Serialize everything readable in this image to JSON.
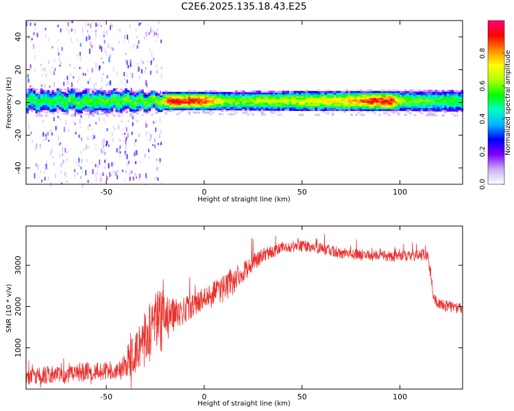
{
  "title": "C2E6.2025.135.18.43.E25",
  "chart_data": [
    {
      "type": "heatmap",
      "xlabel": "Height of straight line (km)",
      "ylabel": "Frequency (Hz)",
      "xlim": [
        -91,
        132
      ],
      "ylim": [
        -50,
        50
      ],
      "xticks": [
        -50,
        0,
        50,
        100
      ],
      "yticks": [
        -40,
        -20,
        0,
        20,
        40
      ],
      "colorbar": {
        "label": "Normalized spectral amplitude",
        "range": [
          0,
          1
        ],
        "ticks": [
          "0.0",
          "0.2",
          "0.4",
          "0.6",
          "0.8"
        ],
        "tick_values": [
          0,
          0.2,
          0.4,
          0.6,
          0.8
        ],
        "colors": [
          "#ffffff",
          "#c8b0f0",
          "#7f00ff",
          "#0000ff",
          "#00b4ff",
          "#00ffc8",
          "#00ff00",
          "#b4ff00",
          "#ffff00",
          "#ff8c00",
          "#ff0000",
          "#ff0078"
        ]
      },
      "band": {
        "center_hz": 1,
        "halfwidth_hz": [
          [
            -91,
            5
          ],
          [
            -40,
            5
          ],
          [
            -22,
            4
          ],
          [
            0,
            4
          ],
          [
            50,
            4.5
          ],
          [
            100,
            4.5
          ],
          [
            132,
            5
          ]
        ],
        "peak_amplitude": [
          [
            -91,
            0.5
          ],
          [
            -40,
            0.55
          ],
          [
            -22,
            0.6
          ],
          [
            -18,
            0.9
          ],
          [
            0,
            0.85
          ],
          [
            10,
            0.6
          ],
          [
            40,
            0.65
          ],
          [
            70,
            0.72
          ],
          [
            85,
            0.85
          ],
          [
            95,
            0.9
          ],
          [
            100,
            0.6
          ],
          [
            132,
            0.5
          ]
        ],
        "scatter_noise_region_km": [
          -91,
          -22
        ]
      }
    },
    {
      "type": "line",
      "xlabel": "Height of straight line (km)",
      "ylabel": "SNR (10 * v/v)",
      "xlim": [
        -91,
        132
      ],
      "ylim": [
        0,
        3950
      ],
      "xticks": [
        -50,
        0,
        50,
        100
      ],
      "yticks": [
        1000,
        2000,
        3000
      ],
      "series": [
        {
          "color": "#e8302c",
          "envelope": [
            [
              -91,
              280,
              350
            ],
            [
              -80,
              350,
              400
            ],
            [
              -70,
              330,
              380
            ],
            [
              -60,
              420,
              420
            ],
            [
              -45,
              450,
              400
            ],
            [
              -40,
              600,
              700
            ],
            [
              -35,
              900,
              900
            ],
            [
              -30,
              1300,
              1200
            ],
            [
              -25,
              1600,
              1400
            ],
            [
              -21,
              1700,
              1500
            ],
            [
              -18,
              1700,
              900
            ],
            [
              -14,
              1850,
              700
            ],
            [
              -10,
              1900,
              600
            ],
            [
              -5,
              2050,
              500
            ],
            [
              0,
              2200,
              500
            ],
            [
              5,
              2350,
              500
            ],
            [
              10,
              2500,
              550
            ],
            [
              15,
              2650,
              500
            ],
            [
              20,
              2850,
              450
            ],
            [
              25,
              3050,
              400
            ],
            [
              30,
              3250,
              300
            ],
            [
              40,
              3420,
              250
            ],
            [
              50,
              3470,
              250
            ],
            [
              60,
              3400,
              250
            ],
            [
              70,
              3300,
              250
            ],
            [
              80,
              3250,
              250
            ],
            [
              90,
              3220,
              250
            ],
            [
              100,
              3230,
              250
            ],
            [
              110,
              3250,
              250
            ],
            [
              114,
              3250,
              250
            ],
            [
              116,
              2700,
              300
            ],
            [
              117,
              2200,
              250
            ],
            [
              120,
              2050,
              250
            ],
            [
              125,
              2000,
              250
            ],
            [
              132,
              1950,
              250
            ]
          ]
        }
      ]
    }
  ]
}
